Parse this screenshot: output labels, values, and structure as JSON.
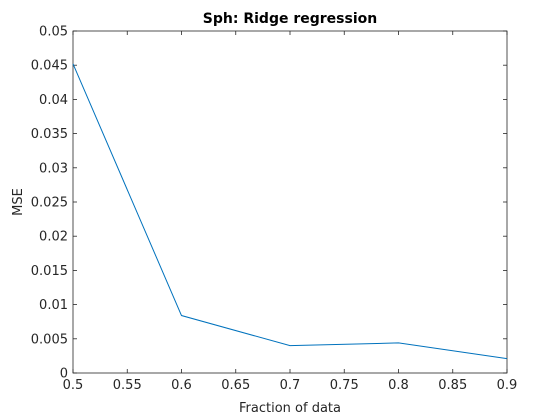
{
  "chart_data": {
    "type": "line",
    "title": "Sph: Ridge regression",
    "xlabel": "Fraction of data",
    "ylabel": "MSE",
    "xlim": [
      0.5,
      0.9
    ],
    "ylim": [
      0,
      0.05
    ],
    "grid": false,
    "legend": "none",
    "xticks": [
      0.5,
      0.55,
      0.6,
      0.65,
      0.7,
      0.75,
      0.8,
      0.85,
      0.9
    ],
    "xtick_labels": [
      "0.5",
      "0.55",
      "0.6",
      "0.65",
      "0.7",
      "0.75",
      "0.8",
      "0.85",
      "0.9"
    ],
    "yticks": [
      0,
      0.005,
      0.01,
      0.015,
      0.02,
      0.025,
      0.03,
      0.035,
      0.04,
      0.045,
      0.05
    ],
    "ytick_labels": [
      "0",
      "0.005",
      "0.01",
      "0.015",
      "0.02",
      "0.025",
      "0.03",
      "0.035",
      "0.04",
      "0.045",
      "0.05"
    ],
    "series": [
      {
        "color": "#0072bd",
        "x": [
          0.5,
          0.6,
          0.7,
          0.8,
          0.9
        ],
        "y": [
          0.0452,
          0.0084,
          0.004,
          0.0044,
          0.0021
        ]
      }
    ]
  }
}
